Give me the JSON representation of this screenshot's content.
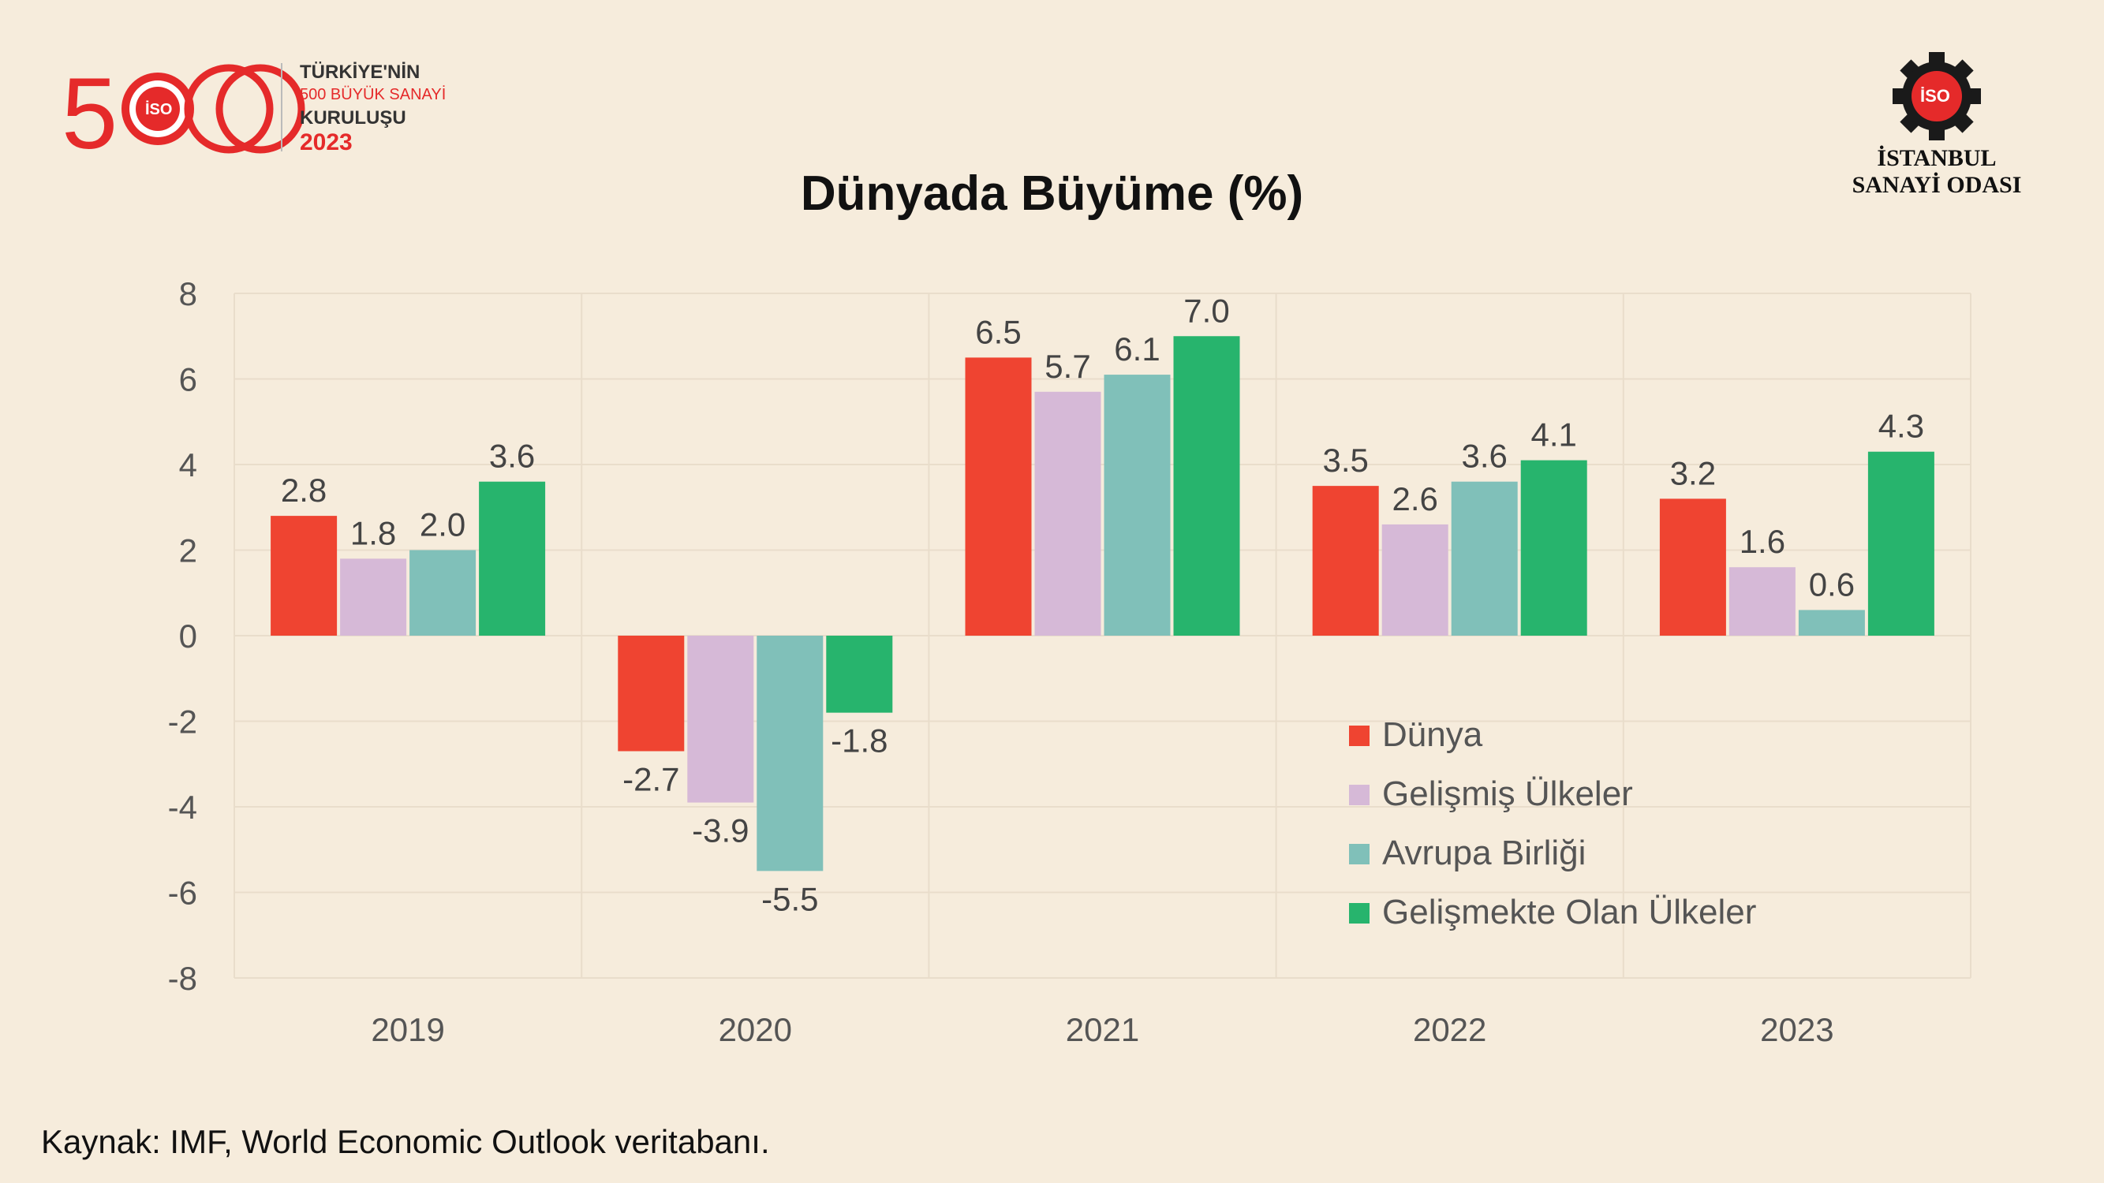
{
  "logo": {
    "line1": "TÜRKİYE'NİN",
    "line2": "500 BÜYÜK SANAYİ",
    "line3": "KURULUŞU",
    "line4": "2023",
    "badge": "İSO"
  },
  "iso": {
    "badge": "İSO",
    "name_line1": "İSTANBUL",
    "name_line2": "SANAYİ ODASI"
  },
  "colors": {
    "background": "#f6ecdc",
    "brand_red": "#e52a2a"
  },
  "chart_data": {
    "type": "bar",
    "title": "Dünyada Büyüme (%)",
    "categories": [
      "2019",
      "2020",
      "2021",
      "2022",
      "2023"
    ],
    "ylim": [
      -8,
      8
    ],
    "yticks": [
      8,
      6,
      4,
      2,
      0,
      -2,
      -4,
      -6,
      -8
    ],
    "ytick_labels": [
      "8",
      "6",
      "4",
      "2",
      "0",
      "-2",
      "-4",
      "-6",
      "-8"
    ],
    "grid": true,
    "legend_position": "lower-right-inside",
    "series": [
      {
        "name": "Dünya",
        "color": "#ef4431",
        "values": [
          2.8,
          -2.7,
          6.5,
          3.5,
          3.2
        ],
        "labels": [
          "2.8",
          "-2.7",
          "6.5",
          "3.5",
          "3.2"
        ]
      },
      {
        "name": "Gelişmiş Ülkeler",
        "color": "#d6b9d7",
        "values": [
          1.8,
          -3.9,
          5.7,
          2.6,
          1.6
        ],
        "labels": [
          "1.8",
          "-3.9",
          "5.7",
          "2.6",
          "1.6"
        ]
      },
      {
        "name": "Avrupa Birliği",
        "color": "#80c0b9",
        "values": [
          2.0,
          -5.5,
          6.1,
          3.6,
          0.6
        ],
        "labels": [
          "2.0",
          "-5.5",
          "6.1",
          "3.6",
          "0.6"
        ]
      },
      {
        "name": "Gelişmekte Olan Ülkeler",
        "color": "#27b46d",
        "values": [
          3.6,
          -1.8,
          7.0,
          4.1,
          4.3
        ],
        "labels": [
          "3.6",
          "-1.8",
          "7.0",
          "4.1",
          "4.3"
        ]
      }
    ]
  },
  "source": "Kaynak: IMF, World Economic Outlook veritabanı."
}
